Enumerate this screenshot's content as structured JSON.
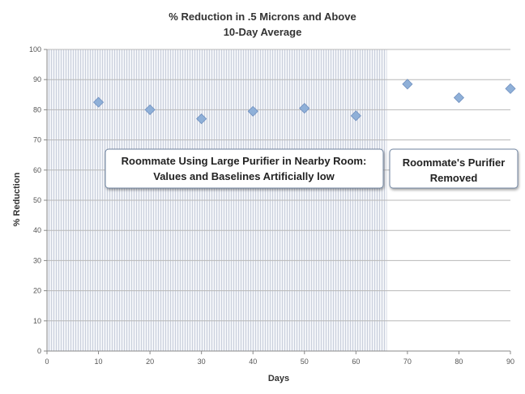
{
  "chart_data": {
    "type": "scatter",
    "title": "% Reduction in .5 Microns and Above",
    "subtitle": "10-Day Average",
    "xlabel": "Days",
    "ylabel": "% Reduction",
    "xlim": [
      0,
      90
    ],
    "ylim": [
      0,
      100
    ],
    "xticks": [
      0,
      10,
      20,
      30,
      40,
      50,
      60,
      70,
      80,
      90
    ],
    "yticks": [
      0,
      10,
      20,
      30,
      40,
      50,
      60,
      70,
      80,
      90,
      100
    ],
    "grid": true,
    "shaded_region_x": [
      0,
      66
    ],
    "marker": "diamond",
    "color": "#8fb0d8",
    "points": [
      {
        "x": 10,
        "y": 82.5
      },
      {
        "x": 20,
        "y": 80
      },
      {
        "x": 30,
        "y": 77
      },
      {
        "x": 40,
        "y": 79.5
      },
      {
        "x": 50,
        "y": 80.5
      },
      {
        "x": 60,
        "y": 78
      },
      {
        "x": 70,
        "y": 88.5
      },
      {
        "x": 80,
        "y": 84
      },
      {
        "x": 90,
        "y": 87
      }
    ],
    "annotations": [
      {
        "lines": [
          "Roommate Using Large Purifier in Nearby Room:",
          "Values and Baselines Artificially low"
        ]
      },
      {
        "lines": [
          "Roommate's Purifier",
          "Removed"
        ]
      }
    ]
  }
}
